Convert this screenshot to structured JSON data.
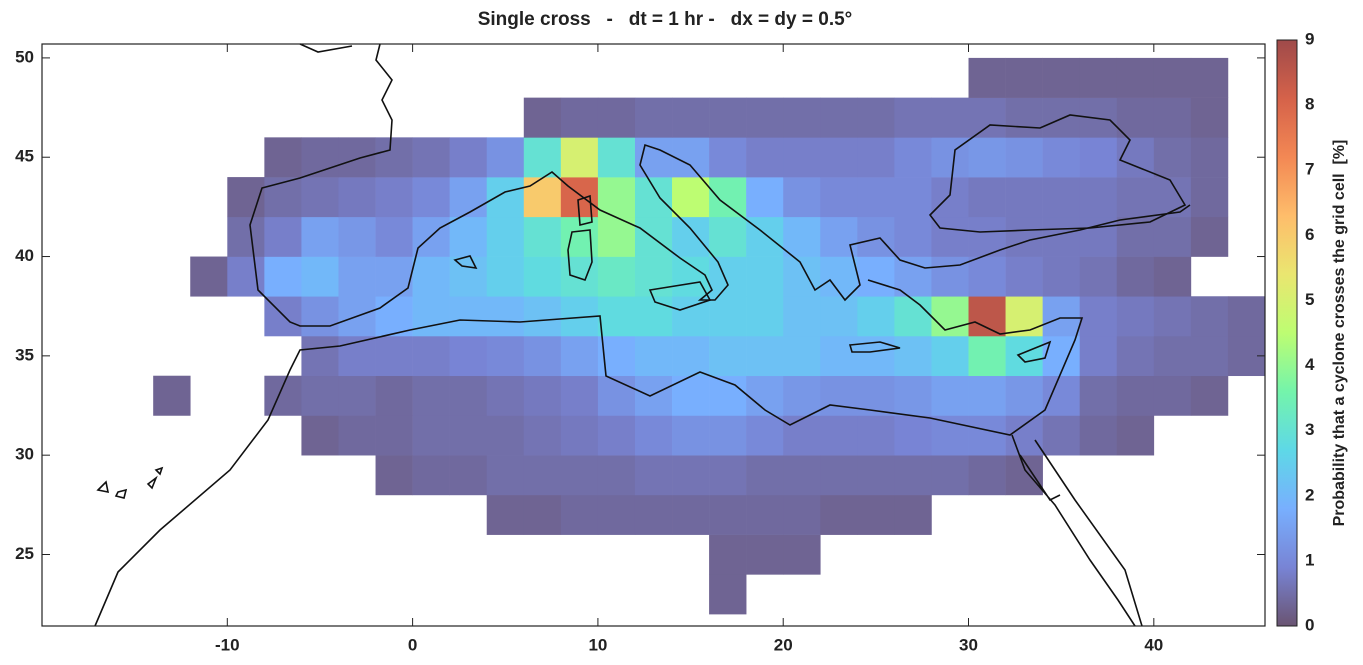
{
  "chart_data": {
    "type": "heatmap",
    "title": "Single cross   -   dt = 1 hr -   dx = dy = 0.5°",
    "colorbar_label": "Probability that a cyclone crosses the grid cell  [%]",
    "xbins": [
      -20,
      -18,
      -16,
      -14,
      -12,
      -10,
      -8,
      -6,
      -4,
      -2,
      0,
      2,
      4,
      6,
      8,
      10,
      12,
      14,
      16,
      18,
      20,
      22,
      24,
      26,
      28,
      30,
      32,
      34,
      36,
      38,
      40,
      42,
      44,
      46
    ],
    "ybins": [
      22,
      24,
      26,
      28,
      30,
      32,
      34,
      36,
      38,
      40,
      42,
      44,
      46,
      48,
      50
    ],
    "z": [
      [
        null,
        null,
        null,
        null,
        null,
        null,
        null,
        null,
        null,
        null,
        null,
        null,
        null,
        null,
        null,
        null,
        null,
        null,
        0.3,
        null,
        null,
        null,
        null,
        null,
        null,
        null,
        null,
        null,
        null,
        null,
        null,
        null,
        null
      ],
      [
        null,
        null,
        null,
        null,
        null,
        null,
        null,
        null,
        null,
        null,
        null,
        null,
        null,
        null,
        null,
        null,
        null,
        null,
        0.3,
        0.3,
        0.3,
        null,
        null,
        null,
        null,
        null,
        null,
        null,
        null,
        null,
        null,
        null,
        null
      ],
      [
        null,
        null,
        null,
        null,
        null,
        null,
        null,
        null,
        null,
        null,
        null,
        null,
        0.3,
        0.3,
        0.4,
        0.4,
        0.4,
        0.4,
        0.4,
        0.4,
        0.4,
        0.3,
        0.3,
        0.3,
        null,
        null,
        null,
        null,
        null,
        null,
        null,
        null,
        null
      ],
      [
        null,
        null,
        null,
        null,
        null,
        null,
        null,
        null,
        null,
        0.3,
        0.4,
        0.4,
        0.5,
        0.5,
        0.5,
        0.5,
        0.6,
        0.6,
        0.6,
        0.5,
        0.5,
        0.5,
        0.5,
        0.5,
        0.5,
        0.4,
        0.3,
        null,
        null,
        null,
        null,
        null,
        null
      ],
      [
        null,
        null,
        null,
        null,
        null,
        null,
        null,
        0.3,
        0.4,
        0.4,
        0.5,
        0.5,
        0.5,
        0.6,
        0.7,
        0.8,
        1,
        1.2,
        1.2,
        1,
        0.8,
        0.8,
        0.8,
        0.9,
        1,
        1,
        0.8,
        0.6,
        0.4,
        0.3,
        null,
        null,
        null
      ],
      [
        null,
        null,
        null,
        0.3,
        null,
        null,
        0.4,
        0.5,
        0.5,
        0.4,
        0.5,
        0.5,
        0.6,
        0.7,
        0.8,
        1.2,
        1.5,
        1.8,
        1.8,
        1.5,
        1.3,
        1.2,
        1.2,
        1.3,
        1.5,
        1.5,
        1.3,
        1,
        0.5,
        0.4,
        0.4,
        0.3,
        null
      ],
      [
        null,
        null,
        null,
        null,
        null,
        null,
        null,
        0.6,
        0.8,
        0.8,
        0.8,
        0.9,
        1,
        1.2,
        1.5,
        1.8,
        2,
        2,
        2.2,
        2.2,
        2.2,
        2,
        2,
        2.2,
        2.5,
        3.5,
        2.8,
        1.8,
        0.8,
        0.6,
        0.5,
        0.5,
        0.4
      ],
      [
        null,
        null,
        null,
        null,
        null,
        null,
        0.8,
        1.2,
        1.5,
        1.8,
        2,
        2,
        2,
        2.2,
        2.5,
        2.8,
        2.8,
        2.5,
        2.5,
        2.5,
        2.2,
        2.2,
        2.5,
        3,
        4,
        8.5,
        5,
        1.5,
        0.8,
        0.7,
        0.6,
        0.5,
        0.4
      ],
      [
        null,
        null,
        null,
        null,
        0.3,
        0.8,
        1.8,
        2,
        1.5,
        1.5,
        2,
        2.2,
        2.5,
        2.8,
        3,
        3.2,
        3,
        2.8,
        2.5,
        2.5,
        2.2,
        2,
        1.8,
        1.5,
        1.2,
        1,
        0.8,
        0.7,
        0.6,
        0.4,
        0.3,
        null,
        null
      ],
      [
        null,
        null,
        null,
        null,
        null,
        0.5,
        0.8,
        1.5,
        1.3,
        1,
        1.5,
        2,
        2.5,
        3,
        3.5,
        4,
        3,
        2.5,
        3,
        2.5,
        2,
        1.5,
        1.2,
        1,
        0.8,
        0.8,
        0.7,
        0.7,
        0.7,
        0.5,
        0.5,
        0.3,
        null
      ],
      [
        null,
        null,
        null,
        null,
        null,
        0.3,
        0.5,
        0.6,
        0.7,
        0.8,
        1,
        1.5,
        2.5,
        6,
        8,
        4,
        3,
        4.5,
        3.5,
        1.8,
        1.2,
        1,
        1,
        1,
        0.8,
        0.7,
        0.7,
        0.7,
        0.7,
        0.6,
        0.6,
        0.4,
        null
      ],
      [
        null,
        null,
        null,
        null,
        null,
        null,
        0.3,
        0.4,
        0.4,
        0.5,
        0.6,
        0.8,
        1.2,
        3,
        5,
        3,
        1.5,
        1.5,
        1,
        0.8,
        0.8,
        0.8,
        0.8,
        1,
        1.2,
        1.3,
        1.2,
        1,
        0.9,
        0.7,
        0.5,
        0.4,
        null
      ],
      [
        null,
        null,
        null,
        null,
        null,
        null,
        null,
        null,
        null,
        null,
        null,
        null,
        null,
        0.3,
        0.4,
        0.4,
        0.5,
        0.5,
        0.5,
        0.5,
        0.5,
        0.5,
        0.5,
        0.6,
        0.6,
        0.6,
        0.5,
        0.5,
        0.5,
        0.4,
        0.4,
        0.3,
        null
      ],
      [
        null,
        null,
        null,
        null,
        null,
        null,
        null,
        null,
        null,
        null,
        null,
        null,
        null,
        null,
        null,
        null,
        null,
        null,
        null,
        null,
        null,
        null,
        null,
        null,
        null,
        0.3,
        0.3,
        0.3,
        0.3,
        0.3,
        0.3,
        0.3,
        null
      ]
    ],
    "xlim": [
      -20,
      46
    ],
    "ylim": [
      21.4,
      50.7
    ],
    "xticks": [
      -10,
      0,
      10,
      20,
      30,
      40
    ],
    "yticks": [
      25,
      30,
      35,
      40,
      45,
      50
    ],
    "clim": [
      0,
      9
    ],
    "cticks": [
      0,
      1,
      2,
      3,
      4,
      5,
      6,
      7,
      8,
      9
    ],
    "colormap": [
      "#30123b",
      "#4454c4",
      "#4490fe",
      "#1fc9dd",
      "#3ef08a",
      "#a4fc3b",
      "#e2dc38",
      "#fea331",
      "#ef5a11",
      "#c42503",
      "#7a0403"
    ],
    "alpha": 0.72
  }
}
